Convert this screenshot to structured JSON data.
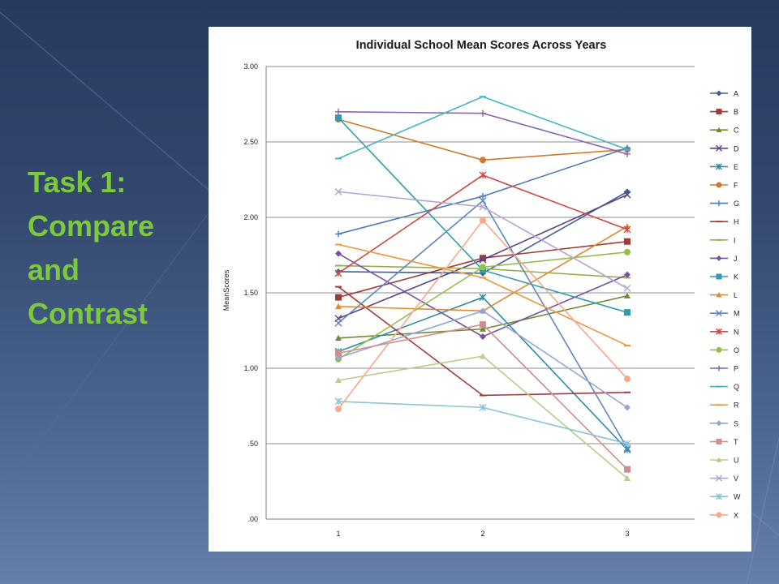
{
  "slide": {
    "title_lines": [
      "Task 1:",
      "Compare",
      "and",
      "Contrast"
    ]
  },
  "chart_data": {
    "type": "line",
    "title": "Individual School Mean Scores Across Years",
    "xlabel": "",
    "ylabel": "MeanScores",
    "categories": [
      "1",
      "2",
      "3"
    ],
    "ylim": [
      0,
      3
    ],
    "yticks": [
      0,
      0.5,
      1.0,
      1.5,
      2.0,
      2.5,
      3.0
    ],
    "ytick_labels": [
      ".00",
      ".50",
      "1.00",
      "1.50",
      "2.00",
      "2.50",
      "3.00"
    ],
    "grid": true,
    "legend_position": "right",
    "series": [
      {
        "name": "A",
        "values": [
          1.64,
          1.63,
          2.17
        ],
        "color": "#3d5f94",
        "marker": "diamond"
      },
      {
        "name": "B",
        "values": [
          1.47,
          1.73,
          1.84
        ],
        "color": "#9e3b36",
        "marker": "square"
      },
      {
        "name": "C",
        "values": [
          1.2,
          1.26,
          1.48
        ],
        "color": "#6f8a36",
        "marker": "triangle"
      },
      {
        "name": "D",
        "values": [
          1.33,
          1.72,
          2.15
        ],
        "color": "#5c4488",
        "marker": "x"
      },
      {
        "name": "E",
        "values": [
          1.11,
          1.47,
          0.46
        ],
        "color": "#2e8ba5",
        "marker": "star"
      },
      {
        "name": "F",
        "values": [
          2.65,
          2.38,
          2.45
        ],
        "color": "#cc7a2e",
        "marker": "circle"
      },
      {
        "name": "G",
        "values": [
          1.89,
          2.14,
          2.46
        ],
        "color": "#4d7ab5",
        "marker": "plus"
      },
      {
        "name": "H",
        "values": [
          1.54,
          0.82,
          0.84
        ],
        "color": "#a03b3b",
        "marker": "dash"
      },
      {
        "name": "I",
        "values": [
          1.68,
          1.66,
          1.6
        ],
        "color": "#93b04a",
        "marker": "dash"
      },
      {
        "name": "J",
        "values": [
          1.76,
          1.21,
          1.62
        ],
        "color": "#7651a0",
        "marker": "diamond"
      },
      {
        "name": "K",
        "values": [
          2.66,
          1.65,
          1.37
        ],
        "color": "#2f9bb0",
        "marker": "square"
      },
      {
        "name": "L",
        "values": [
          1.41,
          1.38,
          1.94
        ],
        "color": "#e0892f",
        "marker": "triangle"
      },
      {
        "name": "M",
        "values": [
          1.3,
          2.11,
          0.47
        ],
        "color": "#5d86c0",
        "marker": "x"
      },
      {
        "name": "N",
        "values": [
          1.63,
          2.28,
          1.92
        ],
        "color": "#cf4a44",
        "marker": "star"
      },
      {
        "name": "O",
        "values": [
          1.06,
          1.67,
          1.77
        ],
        "color": "#94bf4c",
        "marker": "circle"
      },
      {
        "name": "P",
        "values": [
          2.7,
          2.69,
          2.42
        ],
        "color": "#8662b3",
        "marker": "plus"
      },
      {
        "name": "Q",
        "values": [
          2.39,
          2.8,
          2.45
        ],
        "color": "#45b3c8",
        "marker": "dash"
      },
      {
        "name": "R",
        "values": [
          1.82,
          1.6,
          1.15
        ],
        "color": "#f0953c",
        "marker": "dash"
      },
      {
        "name": "S",
        "values": [
          1.07,
          1.38,
          0.74
        ],
        "color": "#8fa7d4",
        "marker": "diamond"
      },
      {
        "name": "T",
        "values": [
          1.1,
          1.29,
          0.33
        ],
        "color": "#d18d8b",
        "marker": "square"
      },
      {
        "name": "U",
        "values": [
          0.92,
          1.08,
          0.27
        ],
        "color": "#b5cf8a",
        "marker": "triangle"
      },
      {
        "name": "V",
        "values": [
          2.17,
          2.07,
          1.53
        ],
        "color": "#b3a3cf",
        "marker": "x"
      },
      {
        "name": "W",
        "values": [
          0.78,
          0.74,
          0.5
        ],
        "color": "#8cc3d6",
        "marker": "star"
      },
      {
        "name": "X",
        "values": [
          0.73,
          1.98,
          0.93
        ],
        "color": "#f6a88a",
        "marker": "circle"
      }
    ]
  }
}
